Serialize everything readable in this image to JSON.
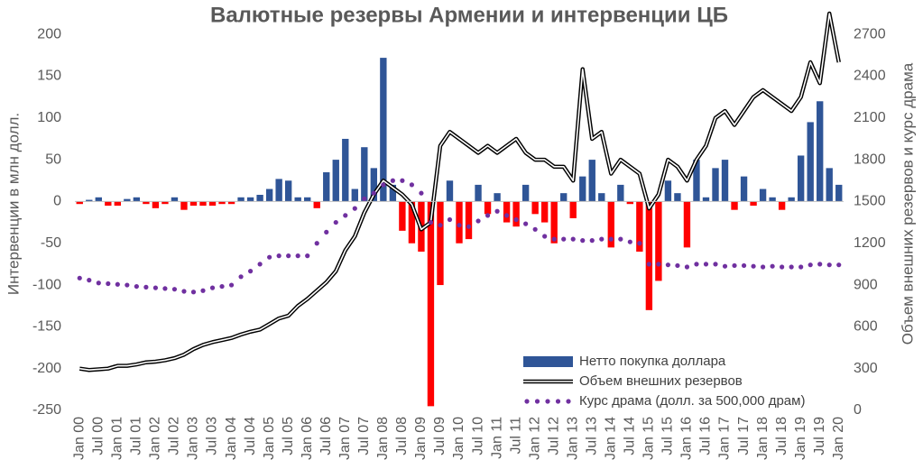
{
  "chart_data": {
    "type": "combo",
    "title": "Валютные резервы Армении и интервенции ЦБ",
    "y_label": "Интервенции в млн долл.",
    "y2_label": "Объем внешних резервов и курс драма",
    "categories": [
      "Jan 00",
      null,
      "Jul 00",
      null,
      "Jan 01",
      null,
      "Jul 01",
      null,
      "Jan 02",
      null,
      "Jul 02",
      null,
      "Jan 03",
      null,
      "Jul 03",
      null,
      "Jan 04",
      null,
      "Jul 04",
      null,
      "Jan 05",
      null,
      "Jul 05",
      null,
      "Jan 06",
      null,
      "Jul 06",
      null,
      "Jan 07",
      null,
      "Jul 07",
      null,
      "Jan 08",
      null,
      "Jul 08",
      null,
      "Jan 09",
      null,
      "Jul 09",
      null,
      "Jan 10",
      null,
      "Jul 10",
      null,
      "Jan 11",
      null,
      "Jul 11",
      null,
      "Jan 12",
      null,
      "Jul 12",
      null,
      "Jan 13",
      null,
      "Jul 13",
      null,
      "Jan 14",
      null,
      "Jul 14",
      null,
      "Jan 15",
      null,
      "Jul 15",
      null,
      "Jan 16",
      null,
      "Jul 16",
      null,
      "Jan 17",
      null,
      "Jul 17",
      null,
      "Jan 18",
      null,
      "Jul 18",
      null,
      "Jan 19",
      null,
      "Jul 19",
      null,
      "Jan 20"
    ],
    "series": [
      {
        "name": "Нетто покупка доллара",
        "type": "bar",
        "color": "#2f5597",
        "negative_color": "#ff0000",
        "values": [
          -3,
          2,
          5,
          -5,
          -5,
          3,
          5,
          -3,
          -8,
          -3,
          5,
          -10,
          -5,
          -5,
          -5,
          -3,
          -3,
          5,
          5,
          8,
          15,
          27,
          25,
          5,
          5,
          -8,
          35,
          50,
          75,
          15,
          65,
          40,
          172,
          20,
          -35,
          -50,
          -60,
          -245,
          -100,
          25,
          -50,
          -45,
          20,
          -15,
          10,
          -25,
          -30,
          20,
          -15,
          -25,
          -50,
          10,
          -20,
          30,
          50,
          10,
          -55,
          20,
          -3,
          -60,
          -130,
          -95,
          25,
          10,
          -55,
          50,
          5,
          40,
          50,
          -10,
          30,
          -5,
          15,
          5,
          -10,
          5,
          55,
          95,
          120,
          40,
          20
        ]
      },
      {
        "name": "Объем внешних резервов",
        "type": "line",
        "color": "#000000",
        "axis": "y2",
        "values": [
          300,
          290,
          295,
          300,
          320,
          320,
          330,
          345,
          350,
          360,
          375,
          400,
          440,
          470,
          490,
          505,
          520,
          545,
          565,
          580,
          620,
          660,
          680,
          750,
          800,
          860,
          920,
          1000,
          1150,
          1250,
          1420,
          1550,
          1650,
          1600,
          1550,
          1480,
          1300,
          1350,
          1900,
          2000,
          1950,
          1900,
          1850,
          1900,
          1850,
          1900,
          1950,
          1850,
          1800,
          1800,
          1750,
          1750,
          1650,
          2450,
          1950,
          2000,
          1700,
          1800,
          1750,
          1700,
          1450,
          1550,
          1800,
          1750,
          1650,
          1800,
          1900,
          2100,
          2150,
          2050,
          2150,
          2250,
          2300,
          2250,
          2200,
          2150,
          2250,
          2500,
          2350,
          2850,
          2500
        ]
      },
      {
        "name": "Курс драма (долл. за 500,000 драм)",
        "type": "scatter",
        "color": "#7030a0",
        "axis": "y2",
        "values": [
          950,
          935,
          915,
          910,
          905,
          900,
          890,
          885,
          880,
          875,
          870,
          855,
          850,
          860,
          880,
          890,
          900,
          960,
          1000,
          1050,
          1100,
          1110,
          1110,
          1110,
          1110,
          1200,
          1280,
          1350,
          1400,
          1450,
          1520,
          1560,
          1620,
          1650,
          1650,
          1620,
          1560,
          1350,
          1330,
          1370,
          1330,
          1320,
          1360,
          1400,
          1430,
          1400,
          1370,
          1340,
          1300,
          1250,
          1230,
          1230,
          1230,
          1220,
          1220,
          1230,
          1230,
          1230,
          1210,
          1200,
          1050,
          1050,
          1045,
          1040,
          1030,
          1050,
          1050,
          1050,
          1035,
          1040,
          1040,
          1035,
          1030,
          1035,
          1030,
          1030,
          1030,
          1045,
          1050,
          1045,
          1045
        ]
      }
    ],
    "ylim": [
      -250,
      225
    ],
    "yticks": [
      -250,
      -200,
      -150,
      -100,
      -50,
      0,
      50,
      100,
      150,
      200
    ],
    "y2lim": [
      0,
      2850
    ],
    "y2ticks": [
      0,
      300,
      600,
      900,
      1200,
      1500,
      1800,
      2100,
      2400,
      2700
    ],
    "grid": false,
    "legend": "lower-right"
  }
}
